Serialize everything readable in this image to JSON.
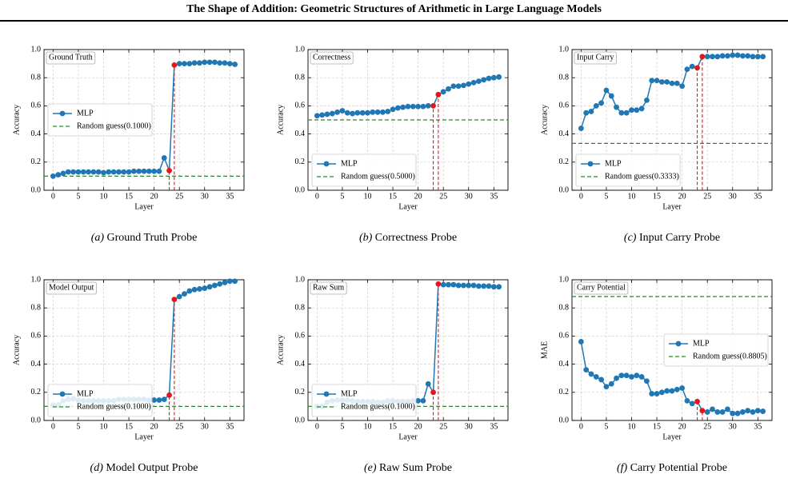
{
  "title": "The Shape of Addition: Geometric Structures of Arithmetic in Large Language Models",
  "chart_data": [
    {
      "type": "line",
      "caption_tag": "(a)",
      "caption": "Ground Truth Probe",
      "annotation": "Ground Truth",
      "xlabel": "Layer",
      "ylabel": "Accuracy",
      "x": [
        0,
        1,
        2,
        3,
        4,
        5,
        6,
        7,
        8,
        9,
        10,
        11,
        12,
        13,
        14,
        15,
        16,
        17,
        18,
        19,
        20,
        21,
        22,
        23,
        24,
        25,
        26,
        27,
        28,
        29,
        30,
        31,
        32,
        33,
        34,
        35,
        36
      ],
      "series": [
        {
          "name": "MLP",
          "color": "#1f77b4",
          "values": [
            0.1,
            0.11,
            0.12,
            0.13,
            0.13,
            0.13,
            0.13,
            0.13,
            0.13,
            0.13,
            0.125,
            0.13,
            0.13,
            0.13,
            0.13,
            0.13,
            0.135,
            0.135,
            0.135,
            0.135,
            0.135,
            0.135,
            0.23,
            0.14,
            0.89,
            0.9,
            0.9,
            0.9,
            0.905,
            0.905,
            0.91,
            0.91,
            0.91,
            0.905,
            0.905,
            0.9,
            0.895
          ]
        }
      ],
      "baseline": {
        "name": "Random guess(0.1000)",
        "value": 0.1,
        "color": "#228b22"
      },
      "highlight_x": [
        23,
        24
      ],
      "highlight_color": "#e8141c",
      "xlim": [
        -1.8,
        37.8
      ],
      "ylim": [
        0,
        1
      ],
      "xticks": [
        0,
        5,
        10,
        15,
        20,
        25,
        30,
        35
      ],
      "yticks": [
        {
          "value": 0,
          "label": "0.0"
        },
        {
          "value": 0.2,
          "label": "0.2"
        },
        {
          "value": 0.4,
          "label": "0.4"
        },
        {
          "value": 0.6,
          "label": "0.6"
        },
        {
          "value": 0.8,
          "label": "0.8"
        },
        {
          "value": 1,
          "label": "1.0"
        }
      ],
      "grid": true,
      "legend": "center left"
    },
    {
      "type": "line",
      "caption_tag": "(b)",
      "caption": "Correctness Probe",
      "annotation": "Correctness",
      "xlabel": "Layer",
      "ylabel": "Accuracy",
      "x": [
        0,
        1,
        2,
        3,
        4,
        5,
        6,
        7,
        8,
        9,
        10,
        11,
        12,
        13,
        14,
        15,
        16,
        17,
        18,
        19,
        20,
        21,
        22,
        23,
        24,
        25,
        26,
        27,
        28,
        29,
        30,
        31,
        32,
        33,
        34,
        35,
        36
      ],
      "series": [
        {
          "name": "MLP",
          "color": "#1f77b4",
          "values": [
            0.53,
            0.535,
            0.54,
            0.545,
            0.555,
            0.565,
            0.55,
            0.545,
            0.55,
            0.55,
            0.55,
            0.555,
            0.555,
            0.555,
            0.56,
            0.575,
            0.585,
            0.59,
            0.595,
            0.595,
            0.595,
            0.595,
            0.6,
            0.6,
            0.68,
            0.7,
            0.72,
            0.74,
            0.74,
            0.745,
            0.755,
            0.765,
            0.775,
            0.785,
            0.795,
            0.8,
            0.805
          ]
        }
      ],
      "baseline": {
        "name": "Random guess(0.5000)",
        "value": 0.5,
        "color": "#228b22"
      },
      "highlight_x": [
        23,
        24
      ],
      "highlight_color": "#e8141c",
      "xlim": [
        -1.8,
        37.8
      ],
      "ylim": [
        0,
        1
      ],
      "xticks": [
        0,
        5,
        10,
        15,
        20,
        25,
        30,
        35
      ],
      "yticks": [
        {
          "value": 0,
          "label": "0.0"
        },
        {
          "value": 0.2,
          "label": "0.2"
        },
        {
          "value": 0.4,
          "label": "0.4"
        },
        {
          "value": 0.6,
          "label": "0.6"
        },
        {
          "value": 0.8,
          "label": "0.8"
        },
        {
          "value": 1,
          "label": "1.0"
        }
      ],
      "grid": true,
      "legend": "lower left"
    },
    {
      "type": "line",
      "caption_tag": "(c)",
      "caption": "Input Carry Probe",
      "annotation": "Input Carry",
      "xlabel": "Layer",
      "ylabel": "Accuracy",
      "x": [
        0,
        1,
        2,
        3,
        4,
        5,
        6,
        7,
        8,
        9,
        10,
        11,
        12,
        13,
        14,
        15,
        16,
        17,
        18,
        19,
        20,
        21,
        22,
        23,
        24,
        25,
        26,
        27,
        28,
        29,
        30,
        31,
        32,
        33,
        34,
        35,
        36
      ],
      "series": [
        {
          "name": "MLP",
          "color": "#1f77b4",
          "values": [
            0.44,
            0.55,
            0.56,
            0.6,
            0.62,
            0.71,
            0.67,
            0.59,
            0.55,
            0.55,
            0.57,
            0.57,
            0.58,
            0.64,
            0.78,
            0.78,
            0.77,
            0.77,
            0.76,
            0.76,
            0.74,
            0.86,
            0.88,
            0.87,
            0.95,
            0.95,
            0.95,
            0.95,
            0.955,
            0.955,
            0.96,
            0.96,
            0.955,
            0.955,
            0.95,
            0.95,
            0.95
          ]
        }
      ],
      "baseline": {
        "name": "Random guess(0.3333)",
        "value": 0.3333,
        "color": "#228b22"
      },
      "highlight_x": [
        23,
        24
      ],
      "highlight_color": "#e8141c",
      "xlim": [
        -1.8,
        37.8
      ],
      "ylim": [
        0,
        1
      ],
      "xticks": [
        0,
        5,
        10,
        15,
        20,
        25,
        30,
        35
      ],
      "yticks": [
        {
          "value": 0,
          "label": "0.0"
        },
        {
          "value": 0.2,
          "label": "0.2"
        },
        {
          "value": 0.4,
          "label": "0.4"
        },
        {
          "value": 0.6,
          "label": "0.6"
        },
        {
          "value": 0.8,
          "label": "0.8"
        },
        {
          "value": 1,
          "label": "1.0"
        }
      ],
      "grid": true,
      "legend": "lower left"
    },
    {
      "type": "line",
      "caption_tag": "(d)",
      "caption": "Model Output Probe",
      "annotation": "Model Output",
      "xlabel": "Layer",
      "ylabel": "Accuracy",
      "x": [
        0,
        1,
        2,
        3,
        4,
        5,
        6,
        7,
        8,
        9,
        10,
        11,
        12,
        13,
        14,
        15,
        16,
        17,
        18,
        19,
        20,
        21,
        22,
        23,
        24,
        25,
        26,
        27,
        28,
        29,
        30,
        31,
        32,
        33,
        34,
        35,
        36
      ],
      "series": [
        {
          "name": "MLP",
          "color": "#1f77b4",
          "values": [
            0.11,
            0.11,
            0.14,
            0.15,
            0.155,
            0.145,
            0.14,
            0.14,
            0.14,
            0.14,
            0.14,
            0.14,
            0.14,
            0.15,
            0.15,
            0.15,
            0.15,
            0.15,
            0.15,
            0.145,
            0.145,
            0.145,
            0.15,
            0.18,
            0.86,
            0.88,
            0.9,
            0.92,
            0.93,
            0.935,
            0.94,
            0.95,
            0.96,
            0.97,
            0.98,
            0.99,
            0.99
          ]
        }
      ],
      "baseline": {
        "name": "Random guess(0.1000)",
        "value": 0.1,
        "color": "#228b22"
      },
      "highlight_x": [
        23,
        24
      ],
      "highlight_color": "#e8141c",
      "xlim": [
        -1.8,
        37.8
      ],
      "ylim": [
        0,
        1
      ],
      "xticks": [
        0,
        5,
        10,
        15,
        20,
        25,
        30,
        35
      ],
      "yticks": [
        {
          "value": 0,
          "label": "0.0"
        },
        {
          "value": 0.2,
          "label": "0.2"
        },
        {
          "value": 0.4,
          "label": "0.4"
        },
        {
          "value": 0.6,
          "label": "0.6"
        },
        {
          "value": 0.8,
          "label": "0.8"
        },
        {
          "value": 1,
          "label": "1.0"
        }
      ],
      "grid": true,
      "legend": "lower left"
    },
    {
      "type": "line",
      "caption_tag": "(e)",
      "caption": "Raw Sum Probe",
      "annotation": "Raw Sum",
      "xlabel": "Layer",
      "ylabel": "Accuracy",
      "x": [
        0,
        1,
        2,
        3,
        4,
        5,
        6,
        7,
        8,
        9,
        10,
        11,
        12,
        13,
        14,
        15,
        16,
        17,
        18,
        19,
        20,
        21,
        22,
        23,
        24,
        25,
        26,
        27,
        28,
        29,
        30,
        31,
        32,
        33,
        34,
        35,
        36
      ],
      "series": [
        {
          "name": "MLP",
          "color": "#1f77b4",
          "values": [
            0.1,
            0.1,
            0.13,
            0.14,
            0.145,
            0.145,
            0.145,
            0.14,
            0.135,
            0.135,
            0.135,
            0.135,
            0.13,
            0.13,
            0.14,
            0.14,
            0.135,
            0.135,
            0.135,
            0.14,
            0.14,
            0.14,
            0.26,
            0.2,
            0.97,
            0.965,
            0.965,
            0.965,
            0.96,
            0.96,
            0.96,
            0.96,
            0.955,
            0.955,
            0.955,
            0.95,
            0.95
          ]
        }
      ],
      "baseline": {
        "name": "Random guess(0.1000)",
        "value": 0.1,
        "color": "#228b22"
      },
      "highlight_x": [
        23,
        24
      ],
      "highlight_color": "#e8141c",
      "xlim": [
        -1.8,
        37.8
      ],
      "ylim": [
        0,
        1
      ],
      "xticks": [
        0,
        5,
        10,
        15,
        20,
        25,
        30,
        35
      ],
      "yticks": [
        {
          "value": 0,
          "label": "0.0"
        },
        {
          "value": 0.2,
          "label": "0.2"
        },
        {
          "value": 0.4,
          "label": "0.4"
        },
        {
          "value": 0.6,
          "label": "0.6"
        },
        {
          "value": 0.8,
          "label": "0.8"
        },
        {
          "value": 1,
          "label": "1.0"
        }
      ],
      "grid": true,
      "legend": "lower left"
    },
    {
      "type": "line",
      "caption_tag": "(f)",
      "caption": "Carry Potential Probe",
      "annotation": "Carry Potential",
      "xlabel": "Layer",
      "ylabel": "MAE",
      "x": [
        0,
        1,
        2,
        3,
        4,
        5,
        6,
        7,
        8,
        9,
        10,
        11,
        12,
        13,
        14,
        15,
        16,
        17,
        18,
        19,
        20,
        21,
        22,
        23,
        24,
        25,
        26,
        27,
        28,
        29,
        30,
        31,
        32,
        33,
        34,
        35,
        36
      ],
      "series": [
        {
          "name": "MLP",
          "color": "#1f77b4",
          "values": [
            0.56,
            0.36,
            0.33,
            0.31,
            0.29,
            0.24,
            0.26,
            0.3,
            0.32,
            0.32,
            0.31,
            0.32,
            0.31,
            0.28,
            0.19,
            0.19,
            0.2,
            0.21,
            0.21,
            0.22,
            0.23,
            0.14,
            0.12,
            0.135,
            0.07,
            0.06,
            0.08,
            0.06,
            0.06,
            0.08,
            0.05,
            0.05,
            0.06,
            0.07,
            0.06,
            0.07,
            0.065
          ]
        }
      ],
      "baseline": {
        "name": "Random guess(0.8805)",
        "value": 0.8805,
        "color": "#228b22"
      },
      "highlight_x": [
        23,
        24
      ],
      "highlight_color": "#e8141c",
      "xlim": [
        -1.8,
        37.8
      ],
      "ylim": [
        0,
        1
      ],
      "xticks": [
        0,
        5,
        10,
        15,
        20,
        25,
        30,
        35
      ],
      "yticks": [
        {
          "value": 0,
          "label": "0.0"
        },
        {
          "value": 0.2,
          "label": "0.2"
        },
        {
          "value": 0.4,
          "label": "0.4"
        },
        {
          "value": 0.6,
          "label": "0.6"
        },
        {
          "value": 0.8,
          "label": "0.8"
        },
        {
          "value": 1,
          "label": "1.0"
        }
      ],
      "grid": true,
      "legend": "center right"
    }
  ]
}
